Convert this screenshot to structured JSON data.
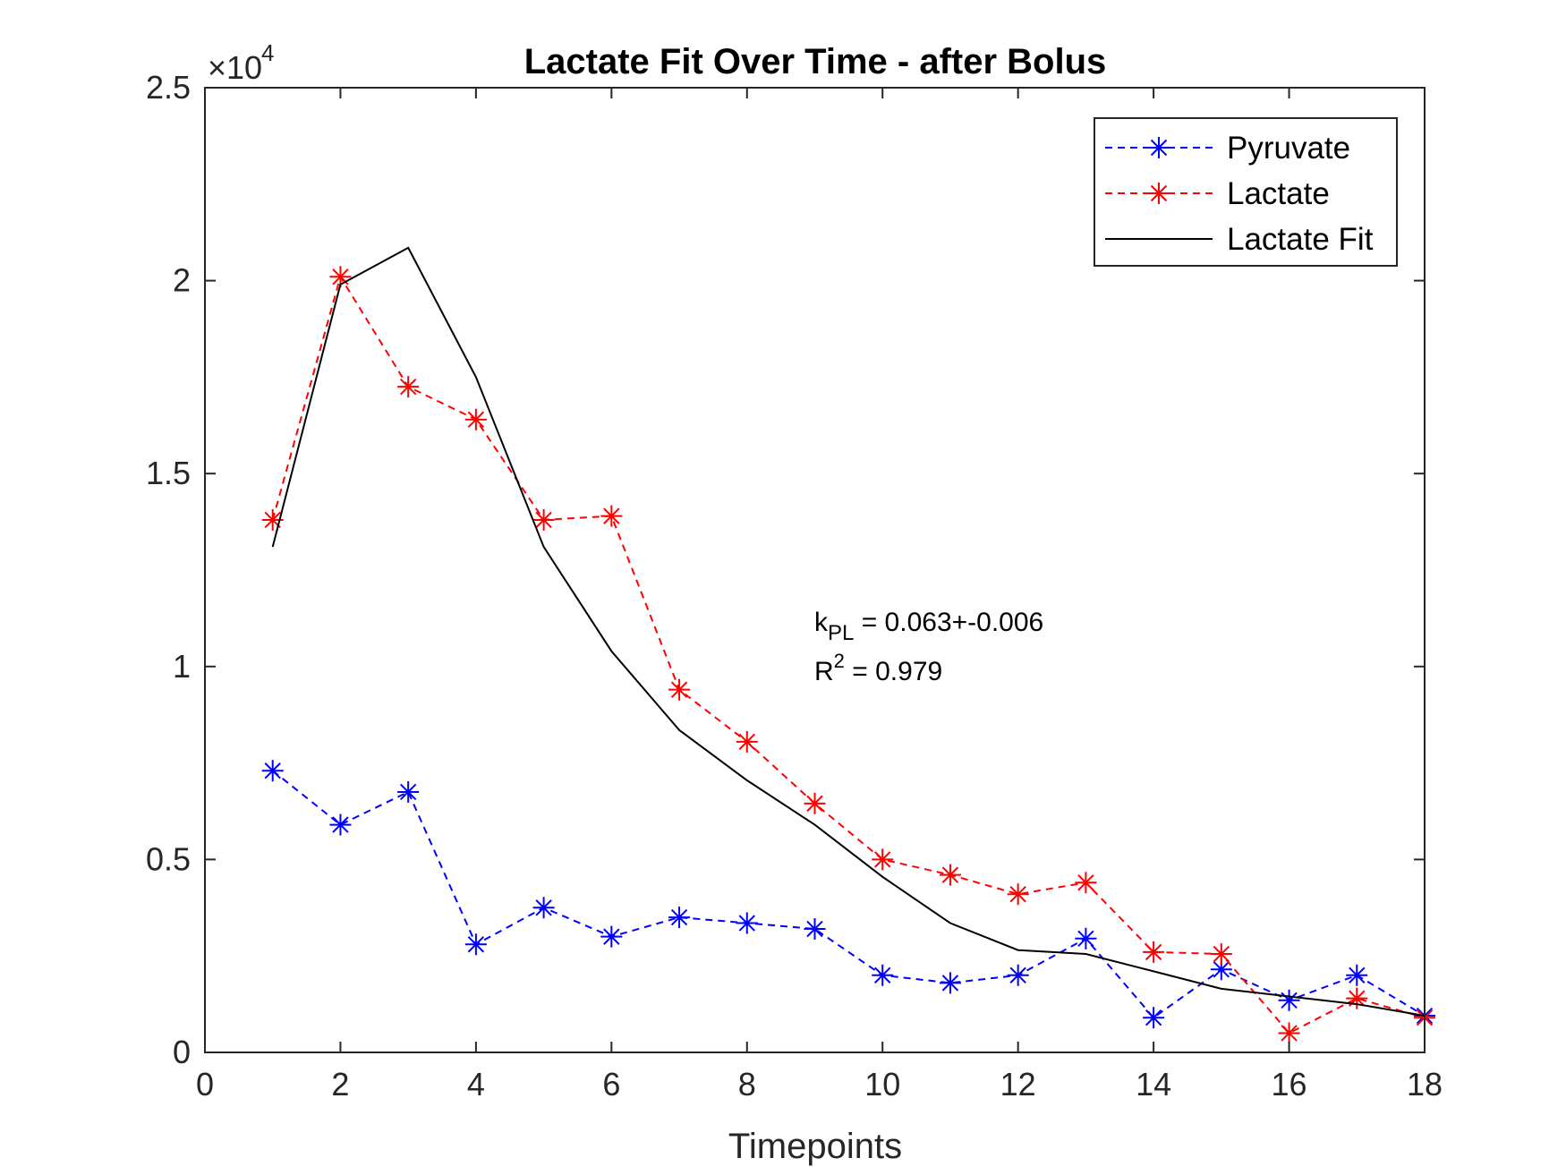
{
  "chart_data": {
    "type": "line",
    "title": "Lactate Fit Over Time - after Bolus",
    "xlabel": "Timepoints",
    "ylabel": "",
    "xlim": [
      0,
      18
    ],
    "ylim": [
      0,
      25000
    ],
    "x_ticks": [
      0,
      2,
      4,
      6,
      8,
      10,
      12,
      14,
      16,
      18
    ],
    "y_ticks": [
      0,
      5000,
      10000,
      15000,
      20000,
      25000
    ],
    "y_tick_labels": [
      "0",
      "0.5",
      "1",
      "1.5",
      "2",
      "2.5"
    ],
    "y_exponent_base": "×10",
    "y_exponent_power": "4",
    "grid": false,
    "legend_position": "top-right",
    "series": [
      {
        "name": "Pyruvate",
        "color": "#0000ff",
        "line_style": "dashed",
        "marker": "asterisk",
        "x": [
          1,
          2,
          3,
          4,
          5,
          6,
          7,
          8,
          9,
          10,
          11,
          12,
          13,
          14,
          15,
          16,
          17,
          18
        ],
        "values": [
          7300,
          5900,
          6750,
          2800,
          3750,
          3000,
          3500,
          3350,
          3200,
          2000,
          1800,
          2000,
          2950,
          900,
          2150,
          1350,
          2000,
          950
        ]
      },
      {
        "name": "Lactate",
        "color": "#ff0000",
        "line_style": "dashed",
        "marker": "asterisk",
        "x": [
          1,
          2,
          3,
          4,
          5,
          6,
          7,
          8,
          9,
          10,
          11,
          12,
          13,
          14,
          15,
          16,
          17,
          18
        ],
        "values": [
          13800,
          20100,
          17250,
          16400,
          13800,
          13900,
          9400,
          8050,
          6450,
          5000,
          4600,
          4100,
          4400,
          2600,
          2550,
          500,
          1400,
          900
        ]
      },
      {
        "name": "Lactate Fit",
        "color": "#000000",
        "line_style": "solid",
        "marker": "none",
        "x": [
          1,
          2,
          3,
          4,
          5,
          6,
          7,
          8,
          9,
          10,
          11,
          12,
          13,
          14,
          15,
          16,
          17,
          18
        ],
        "values": [
          13100,
          19900,
          20850,
          17500,
          13100,
          10400,
          8350,
          7050,
          5900,
          4550,
          3350,
          2650,
          2550,
          2100,
          1650,
          1450,
          1250,
          950
        ]
      }
    ],
    "annotations": [
      {
        "text_main": "k",
        "text_sub": "PL",
        "text_rest": " = 0.063+-0.006"
      },
      {
        "text_main": "R",
        "text_sup": "2",
        "text_rest": " = 0.979"
      }
    ]
  }
}
